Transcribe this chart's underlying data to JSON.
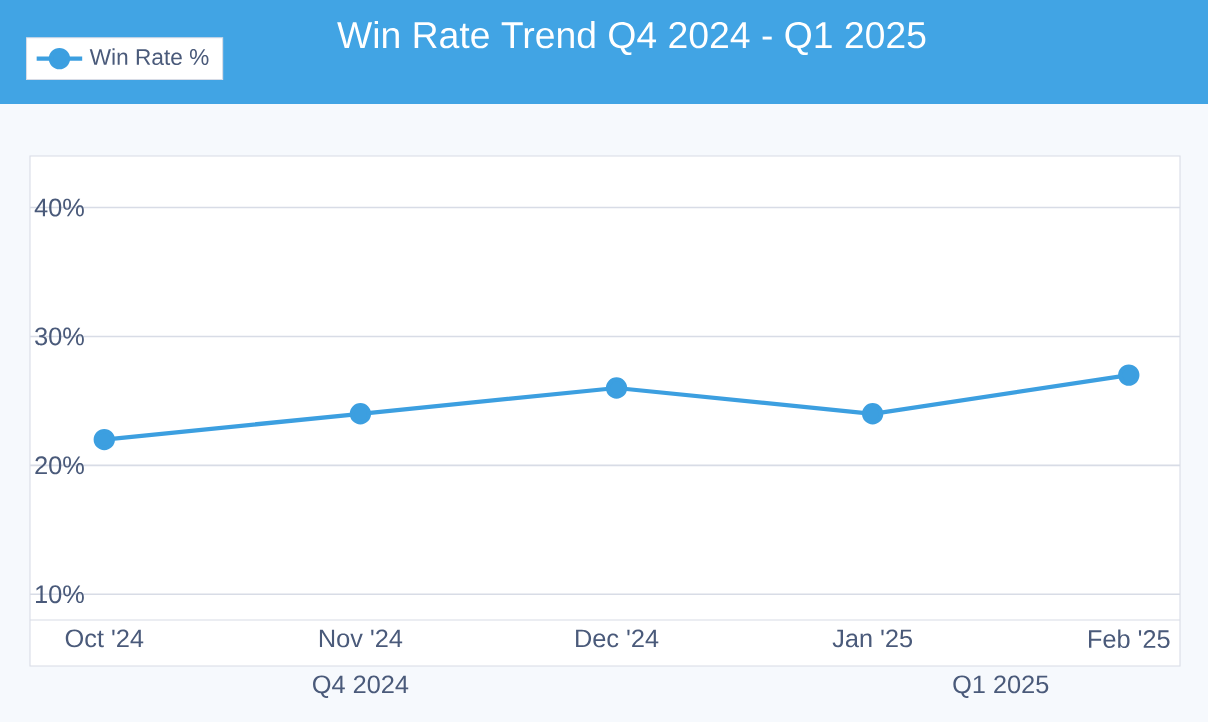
{
  "chart_data": {
    "type": "line",
    "title": "Win Rate Trend Q4 2024 - Q1 2025",
    "categories": [
      "Oct '24",
      "Nov '24",
      "Dec '24",
      "Jan '25",
      "Feb '25"
    ],
    "series": [
      {
        "name": "Win Rate %",
        "color": "#3c9fe0",
        "values": [
          22,
          24,
          26,
          24,
          27
        ]
      }
    ],
    "ylim": [
      8,
      44
    ],
    "yticks": [
      {
        "value": 10,
        "label": "10%"
      },
      {
        "value": 20,
        "label": "20%"
      },
      {
        "value": 30,
        "label": "30%"
      },
      {
        "value": 40,
        "label": "40%"
      }
    ],
    "grid": "y",
    "legend": "top left",
    "marker": "circle",
    "line_style": "solid",
    "annotations": [
      "Q4 2024",
      "Q1 2025"
    ]
  }
}
